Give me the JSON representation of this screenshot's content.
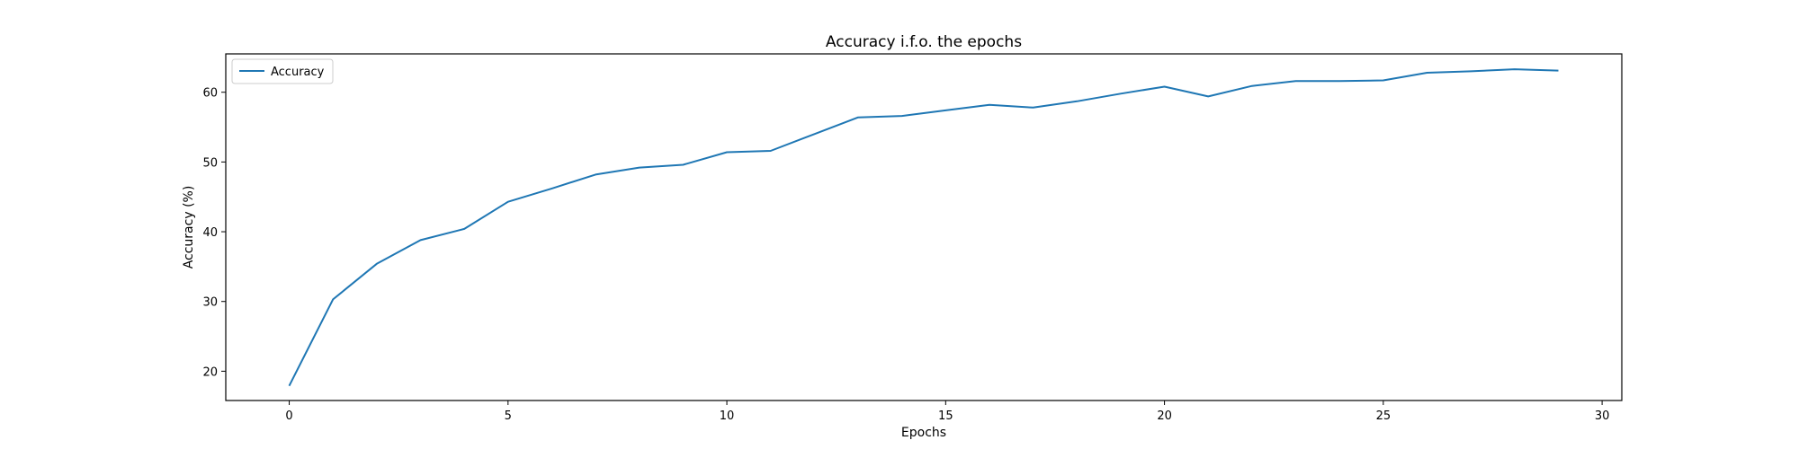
{
  "chart_data": {
    "type": "line",
    "title": "Accuracy i.f.o. the epochs",
    "xlabel": "Epochs",
    "ylabel": "Accuracy (%)",
    "xlim": [
      -1.45,
      30.45
    ],
    "ylim": [
      15.8,
      65.5
    ],
    "xticks": [
      0,
      5,
      10,
      15,
      20,
      25,
      30
    ],
    "yticks": [
      20,
      30,
      40,
      50,
      60
    ],
    "grid": false,
    "legend": "upper left",
    "series": [
      {
        "name": "Accuracy",
        "color": "#1f77b4",
        "x": [
          0,
          1,
          2,
          3,
          4,
          5,
          6,
          7,
          8,
          9,
          10,
          11,
          12,
          13,
          14,
          15,
          16,
          17,
          18,
          19,
          20,
          21,
          22,
          23,
          24,
          25,
          26,
          27,
          28,
          29
        ],
        "y": [
          17.9,
          30.3,
          35.4,
          38.8,
          40.4,
          44.3,
          46.2,
          48.2,
          49.2,
          49.6,
          51.4,
          51.6,
          54.0,
          56.4,
          56.6,
          57.4,
          58.2,
          57.8,
          58.7,
          59.8,
          60.8,
          59.4,
          60.9,
          61.6,
          61.6,
          61.7,
          62.8,
          63.0,
          63.3,
          63.1
        ]
      }
    ]
  }
}
